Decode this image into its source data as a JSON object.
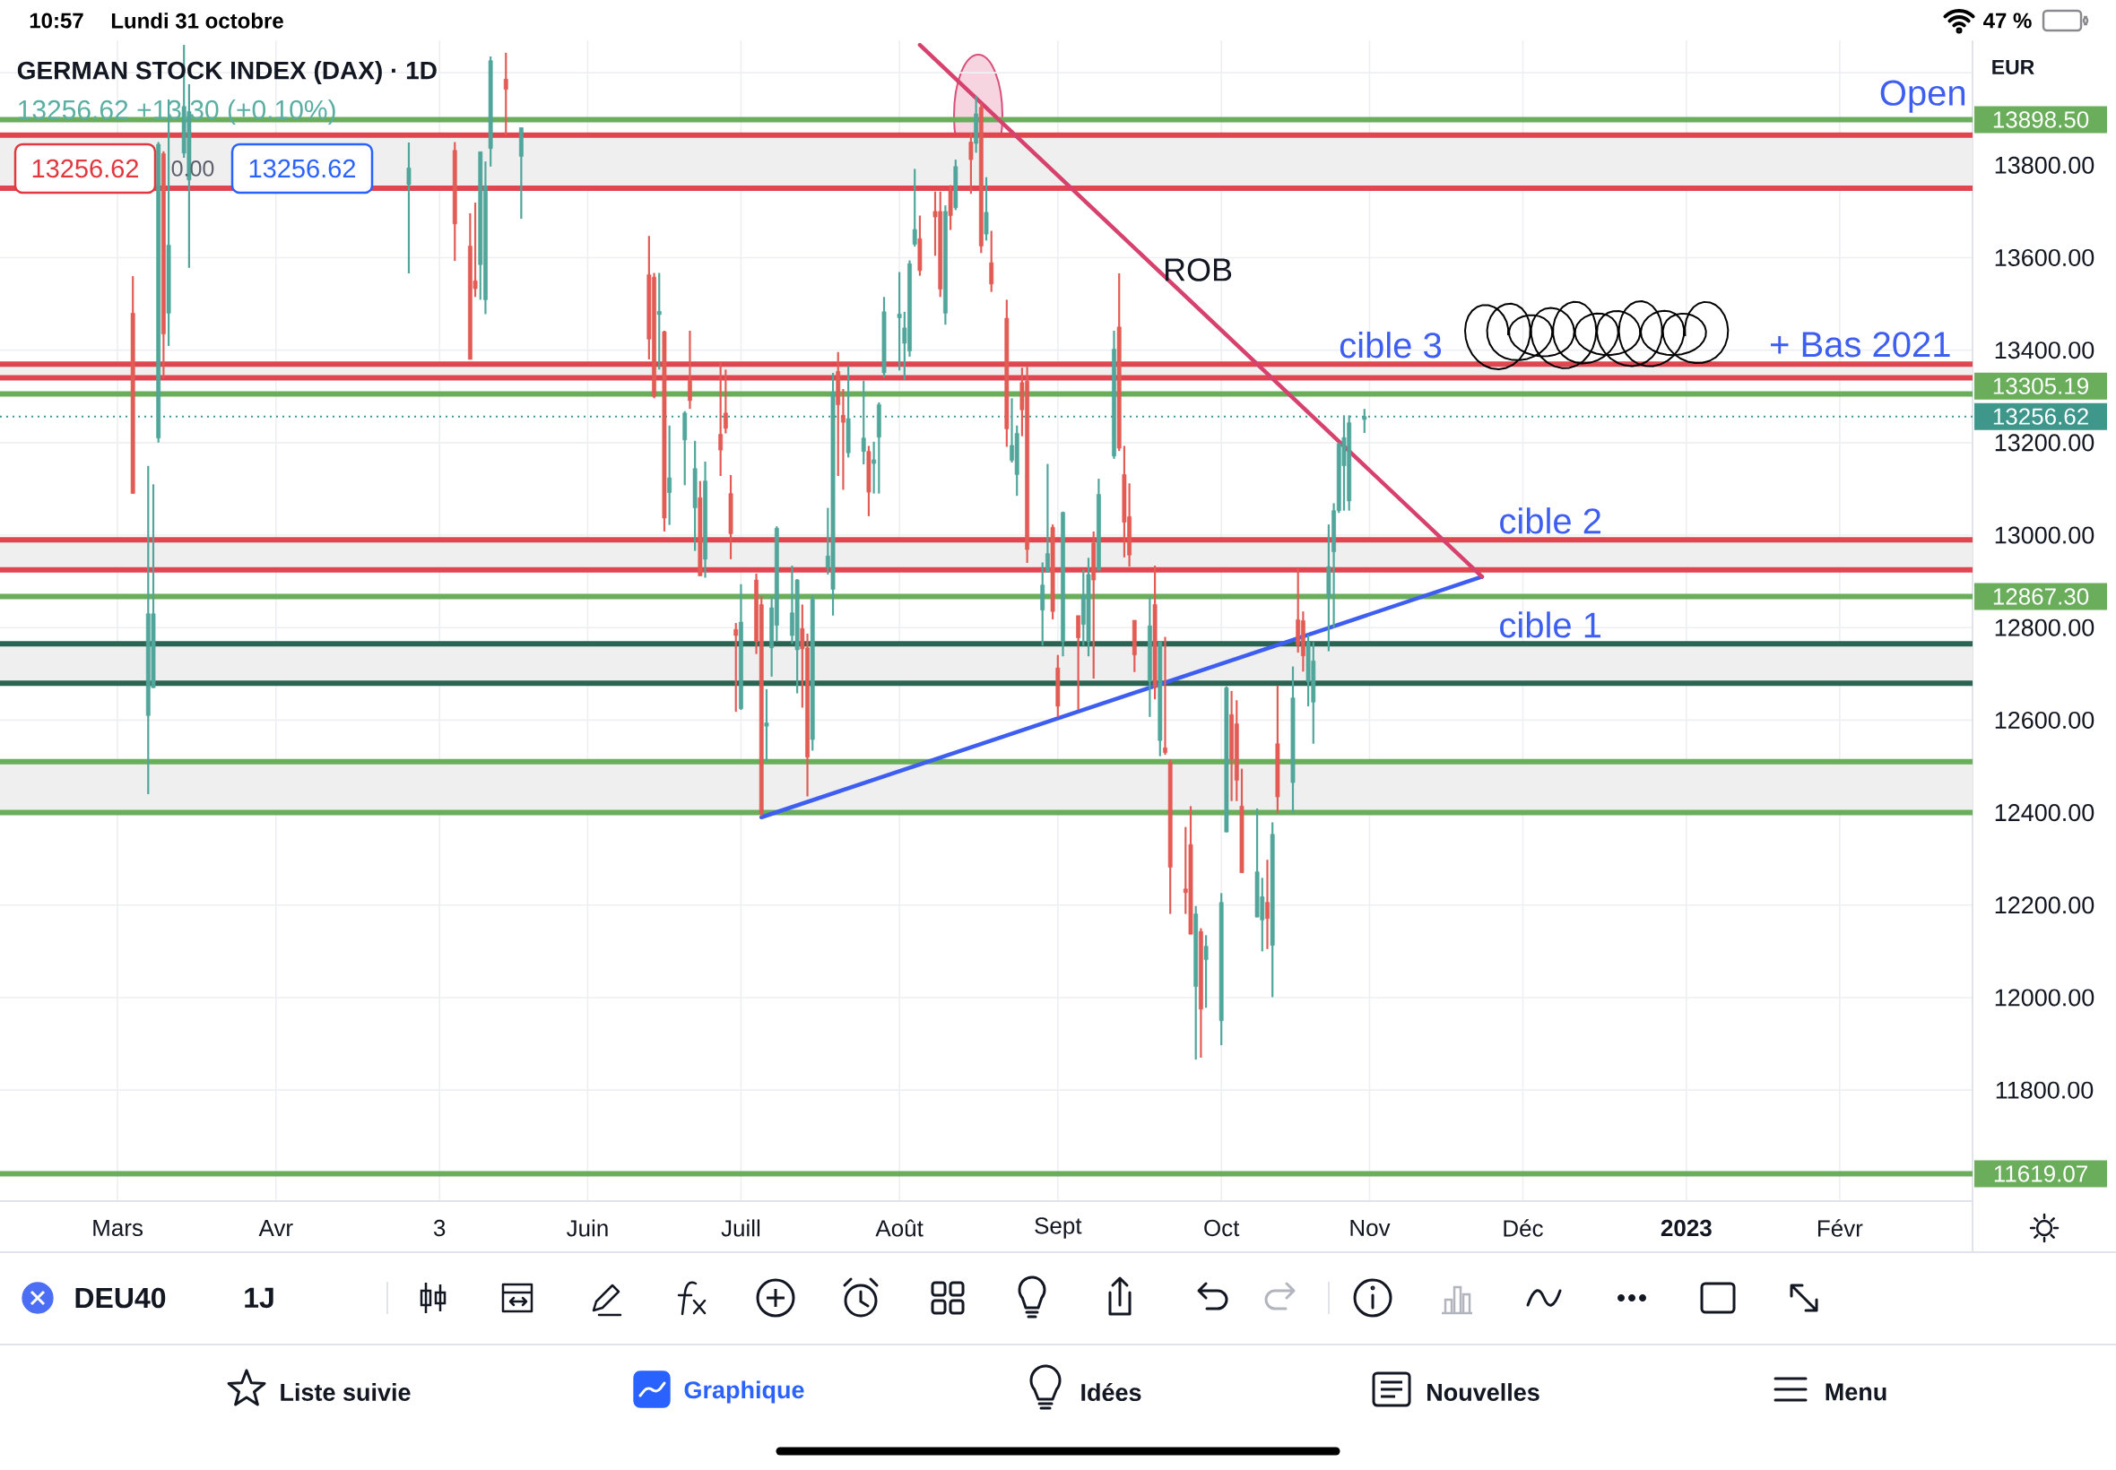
{
  "chart_data": {
    "type": "candlestick",
    "title": "GERMAN STOCK INDEX (DAX) · 1D",
    "subtitle": "13256.62 +13.30 (+0.10%)",
    "x": [
      "2022-03-04",
      "2022-03-07",
      "2022-03-08",
      "2022-03-09",
      "2022-03-10",
      "2022-03-11",
      "2022-03-14",
      "2022-03-15",
      "2022-04-27",
      "2022-05-06",
      "2022-05-09",
      "2022-05-10",
      "2022-05-11",
      "2022-05-12",
      "2022-05-13",
      "2022-05-16",
      "2022-05-19",
      "2022-06-13",
      "2022-06-14",
      "2022-06-15",
      "2022-06-16",
      "2022-06-17",
      "2022-06-20",
      "2022-06-21",
      "2022-06-22",
      "2022-06-23",
      "2022-06-24",
      "2022-06-27",
      "2022-06-28",
      "2022-06-29",
      "2022-06-30",
      "2022-07-01",
      "2022-07-04",
      "2022-07-05",
      "2022-07-06",
      "2022-07-07",
      "2022-07-08",
      "2022-07-11",
      "2022-07-12",
      "2022-07-13",
      "2022-07-14",
      "2022-07-15",
      "2022-07-18",
      "2022-07-19",
      "2022-07-20",
      "2022-07-21",
      "2022-07-22",
      "2022-07-25",
      "2022-07-26",
      "2022-07-27",
      "2022-07-28",
      "2022-07-29",
      "2022-08-01",
      "2022-08-02",
      "2022-08-03",
      "2022-08-04",
      "2022-08-05",
      "2022-08-08",
      "2022-08-09",
      "2022-08-10",
      "2022-08-11",
      "2022-08-12",
      "2022-08-15",
      "2022-08-16",
      "2022-08-17",
      "2022-08-18",
      "2022-08-19",
      "2022-08-22",
      "2022-08-23",
      "2022-08-24",
      "2022-08-25",
      "2022-08-26",
      "2022-08-29",
      "2022-08-30",
      "2022-08-31",
      "2022-09-01",
      "2022-09-02",
      "2022-09-05",
      "2022-09-06",
      "2022-09-07",
      "2022-09-08",
      "2022-09-09",
      "2022-09-12",
      "2022-09-13",
      "2022-09-14",
      "2022-09-15",
      "2022-09-16",
      "2022-09-19",
      "2022-09-20",
      "2022-09-21",
      "2022-09-22",
      "2022-09-23",
      "2022-09-26",
      "2022-09-27",
      "2022-09-28",
      "2022-09-29",
      "2022-09-30",
      "2022-10-03",
      "2022-10-04",
      "2022-10-05",
      "2022-10-06",
      "2022-10-07",
      "2022-10-10",
      "2022-10-11",
      "2022-10-12",
      "2022-10-13",
      "2022-10-14",
      "2022-10-17",
      "2022-10-18",
      "2022-10-19",
      "2022-10-20",
      "2022-10-21",
      "2022-10-24",
      "2022-10-25",
      "2022-10-26",
      "2022-10-27",
      "2022-10-28",
      "2022-10-31"
    ],
    "ohlc": [
      [
        13480,
        13560,
        13090,
        13090
      ],
      [
        12610,
        13150,
        12440,
        12830
      ],
      [
        12670,
        13110,
        12670,
        12830
      ],
      [
        13210,
        13850,
        13200,
        13845
      ],
      [
        13825,
        13830,
        13340,
        13435
      ],
      [
        13480,
        13942,
        13409,
        13627
      ],
      [
        13826,
        14060,
        13816,
        13927
      ],
      [
        13768,
        13975,
        13578,
        13916
      ],
      [
        13758,
        13849,
        13566,
        13794
      ],
      [
        13832,
        13850,
        13593,
        13673
      ],
      [
        13625,
        13696,
        13380,
        13380
      ],
      [
        13550,
        13719,
        13515,
        13533
      ],
      [
        13585,
        13829,
        13509,
        13829
      ],
      [
        13509,
        13808,
        13478,
        13755
      ],
      [
        13836,
        14035,
        13797,
        14026
      ],
      [
        13986,
        14043,
        13865,
        13964
      ],
      [
        13819,
        13881,
        13684,
        13881
      ],
      [
        13563,
        13647,
        13380,
        13424
      ],
      [
        13558,
        13567,
        13296,
        13300
      ],
      [
        13477,
        13567,
        13358,
        13484
      ],
      [
        13440,
        13442,
        13008,
        13037
      ],
      [
        13092,
        13237,
        13022,
        13124
      ],
      [
        13206,
        13268,
        13108,
        13264
      ],
      [
        13334,
        13442,
        13273,
        13291
      ],
      [
        13059,
        13204,
        12966,
        13144
      ],
      [
        13081,
        13117,
        12912,
        12912
      ],
      [
        12948,
        13159,
        12908,
        13117
      ],
      [
        13218,
        13375,
        13128,
        13184
      ],
      [
        13264,
        13358,
        13220,
        13231
      ],
      [
        13090,
        13130,
        12948,
        13003
      ],
      [
        12796,
        12810,
        12618,
        12783
      ],
      [
        12625,
        12894,
        12622,
        12812
      ],
      [
        12903,
        12917,
        12743,
        12770
      ],
      [
        12850,
        12868,
        12392,
        12398
      ],
      [
        12587,
        12667,
        12511,
        12594
      ],
      [
        12756,
        12868,
        12694,
        12843
      ],
      [
        12805,
        13019,
        12770,
        13015
      ],
      [
        12783,
        12934,
        12765,
        12832
      ],
      [
        12752,
        12905,
        12658,
        12903
      ],
      [
        12798,
        12850,
        12627,
        12754
      ],
      [
        12756,
        12787,
        12435,
        12520
      ],
      [
        12558,
        12871,
        12534,
        12861
      ],
      [
        12930,
        13059,
        12915,
        12955
      ],
      [
        12883,
        13351,
        12826,
        13309
      ],
      [
        13354,
        13396,
        13128,
        13282
      ],
      [
        13259,
        13316,
        13098,
        13244
      ],
      [
        13178,
        13366,
        13168,
        13252
      ],
      [
        13181,
        13334,
        13153,
        13210
      ],
      [
        13181,
        13193,
        13041,
        13093
      ],
      [
        13155,
        13202,
        13090,
        13163
      ],
      [
        13212,
        13287,
        13090,
        13282
      ],
      [
        13351,
        13515,
        13341,
        13483
      ],
      [
        13470,
        13569,
        13356,
        13478
      ],
      [
        13415,
        13483,
        13336,
        13448
      ],
      [
        13398,
        13594,
        13386,
        13587
      ],
      [
        13629,
        13792,
        13624,
        13661
      ],
      [
        13641,
        13691,
        13561,
        13572
      ],
      [
        13700,
        13743,
        13604,
        13688
      ],
      [
        13700,
        13743,
        13515,
        13532
      ],
      [
        13480,
        13713,
        13455,
        13700
      ],
      [
        13745,
        13757,
        13660,
        13691
      ],
      [
        13708,
        13812,
        13703,
        13797
      ],
      [
        13850,
        13870,
        13738,
        13812
      ],
      [
        13847,
        13950,
        13827,
        13911
      ],
      [
        13925,
        13935,
        13610,
        13625
      ],
      [
        13651,
        13774,
        13637,
        13698
      ],
      [
        13589,
        13658,
        13526,
        13543
      ],
      [
        13469,
        13509,
        13191,
        13230
      ],
      [
        13162,
        13296,
        13157,
        13194
      ],
      [
        13131,
        13237,
        13085,
        13220
      ],
      [
        13330,
        13362,
        13214,
        13271
      ],
      [
        13333,
        13364,
        12940,
        12969
      ],
      [
        12838,
        12941,
        12761,
        12892
      ],
      [
        12920,
        13154,
        12920,
        12960
      ],
      [
        13017,
        13023,
        12818,
        12835
      ],
      [
        12713,
        12741,
        12607,
        12630
      ],
      [
        12770,
        13051,
        12738,
        13049
      ],
      [
        12826,
        12826,
        12622,
        12778
      ],
      [
        12807,
        12926,
        12761,
        12871
      ],
      [
        12770,
        12951,
        12738,
        12915
      ],
      [
        12983,
        13008,
        12690,
        12903
      ],
      [
        12924,
        13122,
        12924,
        13088
      ],
      [
        13171,
        13442,
        13165,
        13402
      ],
      [
        13450,
        13566,
        13182,
        13188
      ],
      [
        13131,
        13193,
        12952,
        13028
      ],
      [
        13040,
        13112,
        12932,
        12957
      ],
      [
        12816,
        12816,
        12704,
        12741
      ],
      [
        12684,
        12866,
        12607,
        12804
      ],
      [
        12850,
        12934,
        12645,
        12670
      ],
      [
        12556,
        12769,
        12522,
        12769
      ],
      [
        12540,
        12780,
        12525,
        12530
      ],
      [
        12508,
        12515,
        12181,
        12282
      ],
      [
        12235,
        12369,
        12181,
        12227
      ],
      [
        12331,
        12414,
        12137,
        12137
      ],
      [
        12024,
        12198,
        11866,
        12181
      ],
      [
        12143,
        12150,
        11870,
        11975
      ],
      [
        12082,
        12135,
        11978,
        12111
      ],
      [
        11950,
        12226,
        11897,
        12206
      ],
      [
        12358,
        12673,
        12358,
        12670
      ],
      [
        12612,
        12663,
        12425,
        12516
      ],
      [
        12592,
        12643,
        12425,
        12470
      ],
      [
        12414,
        12495,
        12270,
        12270
      ],
      [
        12174,
        12409,
        12174,
        12272
      ],
      [
        12168,
        12259,
        12100,
        12218
      ],
      [
        12206,
        12298,
        12105,
        12171
      ],
      [
        12113,
        12379,
        12001,
        12353
      ],
      [
        12549,
        12675,
        12399,
        12434
      ],
      [
        12465,
        12716,
        12399,
        12648
      ],
      [
        12817,
        12928,
        12746,
        12762
      ],
      [
        12815,
        12835,
        12705,
        12739
      ],
      [
        12683,
        12784,
        12630,
        12769
      ],
      [
        12639,
        12769,
        12549,
        12728
      ],
      [
        12866,
        13023,
        12749,
        12932
      ],
      [
        12964,
        13069,
        12800,
        13053
      ],
      [
        13053,
        13200,
        13048,
        13198
      ],
      [
        13150,
        13259,
        13053,
        13211
      ],
      [
        13074,
        13259,
        13053,
        13243
      ],
      [
        13250,
        13273,
        13221,
        13256.62
      ]
    ],
    "colors": [
      "#e25c55",
      "#50a69b",
      "#50a69b",
      "#50a69b",
      "#e25c55",
      "#50a69b",
      "#50a69b",
      "#50a69b",
      "#50a69b",
      "#e25c55",
      "#e25c55",
      "#e25c55",
      "#50a69b",
      "#50a69b",
      "#50a69b",
      "#e25c55",
      "#50a69b",
      "#e25c55",
      "#e25c55",
      "#50a69b",
      "#e25c55",
      "#50a69b",
      "#50a69b",
      "#e25c55",
      "#50a69b",
      "#e25c55",
      "#50a69b",
      "#e25c55",
      "#e25c55",
      "#e25c55",
      "#e25c55",
      "#50a69b",
      "#e25c55",
      "#e25c55",
      "#50a69b",
      "#50a69b",
      "#50a69b",
      "#50a69b",
      "#50a69b",
      "#e25c55",
      "#e25c55",
      "#50a69b",
      "#50a69b",
      "#50a69b",
      "#e25c55",
      "#e25c55",
      "#50a69b",
      "#50a69b",
      "#e25c55",
      "#50a69b",
      "#50a69b",
      "#50a69b",
      "#50a69b",
      "#50a69b",
      "#50a69b",
      "#50a69b",
      "#e25c55",
      "#e25c55",
      "#e25c55",
      "#50a69b",
      "#e25c55",
      "#50a69b",
      "#e25c55",
      "#50a69b",
      "#e25c55",
      "#50a69b",
      "#e25c55",
      "#e25c55",
      "#50a69b",
      "#50a69b",
      "#e25c55",
      "#e25c55",
      "#50a69b",
      "#50a69b",
      "#e25c55",
      "#e25c55",
      "#50a69b",
      "#e25c55",
      "#50a69b",
      "#50a69b",
      "#e25c55",
      "#50a69b",
      "#50a69b",
      "#e25c55",
      "#e25c55",
      "#e25c55",
      "#e25c55",
      "#50a69b",
      "#e25c55",
      "#50a69b",
      "#e25c55",
      "#e25c55",
      "#e25c55",
      "#e25c55",
      "#50a69b",
      "#e25c55",
      "#50a69b",
      "#50a69b",
      "#50a69b",
      "#e25c55",
      "#e25c55",
      "#e25c55",
      "#50a69b",
      "#50a69b",
      "#e25c55",
      "#50a69b",
      "#e25c55",
      "#50a69b",
      "#e25c55",
      "#e25c55",
      "#50a69b",
      "#50a69b",
      "#50a69b",
      "#50a69b",
      "#50a69b",
      "#50a69b",
      "#50a69b",
      "#50a69b"
    ],
    "series": [
      {
        "type": "line",
        "x": [
          "2022-07-05",
          "2022-11-23"
        ],
        "values": [
          12390,
          12910
        ],
        "color": "#3d5ef0"
      },
      {
        "type": "line",
        "x": [
          "2022-08-05",
          "2022-11-23"
        ],
        "values": [
          14060,
          12910
        ],
        "color": "#d7416e"
      }
    ],
    "xlim": [
      "2022-02-06",
      "2023-02-27"
    ],
    "xticks": [
      {
        "value": "2022-03-01",
        "label": "Mars"
      },
      {
        "value": "2022-04-01",
        "label": "Avr"
      },
      {
        "value": "2022-05-03",
        "label": "3"
      },
      {
        "value": "2022-06-01",
        "label": "Juin"
      },
      {
        "value": "2022-07-01",
        "label": "Juill"
      },
      {
        "value": "2022-08-01",
        "label": "Août"
      },
      {
        "value": "2022-09-01",
        "label": "Sept"
      },
      {
        "value": "2022-10-03",
        "label": "Oct"
      },
      {
        "value": "2022-11-01",
        "label": "Nov"
      },
      {
        "value": "2022-12-01",
        "label": "Déc"
      },
      {
        "value": "2023-01-02",
        "label": "**2023**"
      },
      {
        "value": "2023-02-01",
        "label": "Févr"
      }
    ],
    "ylim": [
      11560,
      14070
    ],
    "yticks": [
      {
        "value": 11800,
        "label": "11800.00"
      },
      {
        "value": 12000,
        "label": "12000.00"
      },
      {
        "value": 12200,
        "label": "12200.00"
      },
      {
        "value": 12400,
        "label": "12400.00"
      },
      {
        "value": 12600,
        "label": "12600.00"
      },
      {
        "value": 12800,
        "label": "12800.00"
      },
      {
        "value": 13000,
        "label": "13000.00"
      },
      {
        "value": 13200,
        "label": "13200.00"
      },
      {
        "value": 13400,
        "label": "13400.00"
      },
      {
        "value": 13600,
        "label": "13600.00"
      },
      {
        "value": 13800,
        "label": "13800.00"
      },
      {
        "value": 14000,
        "label": null
      }
    ],
    "grid": true,
    "ref_lines": [
      {
        "axis": "y",
        "value": 13898.5,
        "label": "13898.50",
        "color": "#6aad5a"
      },
      {
        "axis": "y",
        "value": 13305.19,
        "label": "13305.19",
        "color": "#6aad5a"
      },
      {
        "axis": "y",
        "value": 13256.62,
        "label": "13256.62",
        "color": "#3f978c",
        "line_style": "dotted"
      },
      {
        "axis": "y",
        "value": 12867.3,
        "label": "12867.30",
        "color": "#6aad5a"
      },
      {
        "axis": "y",
        "value": 11619.07,
        "label": "11619.07",
        "color": "#6aad5a"
      },
      {
        "axis": "y",
        "value": 13865,
        "color": "#e0464f"
      },
      {
        "axis": "y",
        "value": 13750,
        "color": "#e0464f"
      },
      {
        "axis": "y",
        "value": 13370,
        "color": "#e0464f"
      },
      {
        "axis": "y",
        "value": 13340,
        "color": "#e0464f"
      },
      {
        "axis": "y",
        "value": 12990,
        "color": "#e0464f"
      },
      {
        "axis": "y",
        "value": 12925,
        "color": "#e0464f"
      },
      {
        "axis": "y",
        "value": 12765,
        "color": "#2b6452"
      },
      {
        "axis": "y",
        "value": 12680,
        "color": "#2b6452"
      },
      {
        "axis": "y",
        "value": 12510,
        "color": "#6aad5a"
      },
      {
        "axis": "y",
        "value": 12400,
        "color": "#6aad5a"
      }
    ],
    "bands": [
      {
        "axis": "y",
        "from": 13750,
        "to": 13865,
        "color": "#efefef"
      },
      {
        "axis": "y",
        "from": 13340,
        "to": 13370,
        "label": "cible 3",
        "color": "#efefef"
      },
      {
        "axis": "y",
        "from": 12925,
        "to": 12990,
        "label": "cible 2",
        "color": "#efefef"
      },
      {
        "axis": "y",
        "from": 12680,
        "to": 12765,
        "label": "cible 1",
        "color": "#efefef"
      },
      {
        "axis": "y",
        "from": 12400,
        "to": 12510,
        "color": "#efefef"
      }
    ],
    "annotations": [
      {
        "text": "Open",
        "x": "2023-02-26",
        "y": 13898.5
      },
      {
        "text": "+ Bas 2021",
        "x": "2023-02-23",
        "y": 13305.19
      },
      "ROB",
      "13256.62",
      "0.00",
      "13256.62",
      "10:57",
      "Lundi 31 octobre",
      "47 %",
      "EUR",
      "DEU40",
      "1J",
      "Liste suivie",
      "Graphique",
      "Idées",
      "Nouvelles",
      "Menu"
    ]
  }
}
